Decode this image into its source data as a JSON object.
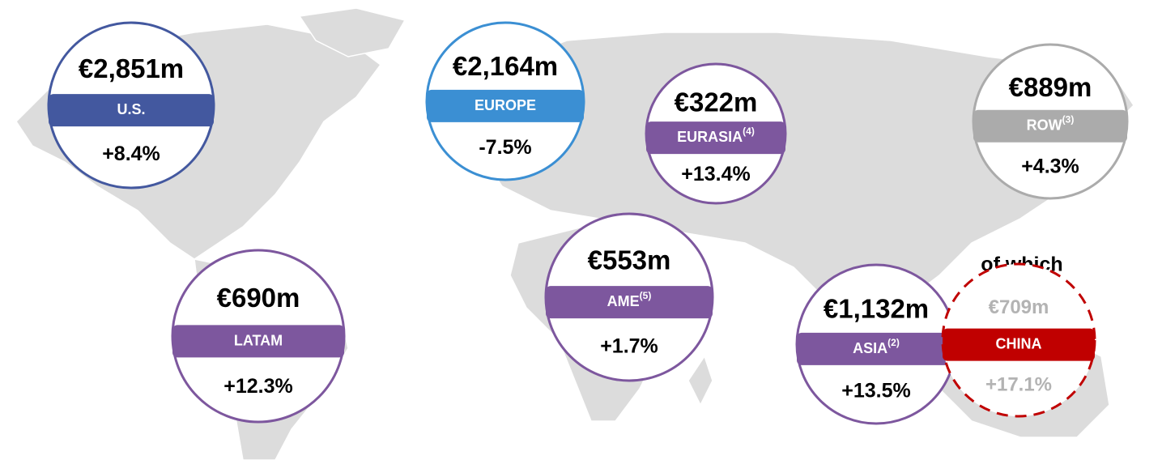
{
  "regions": [
    {
      "value": "€2,851m",
      "name": "U.S.",
      "change": "+8.4%",
      "color": "#43589f"
    },
    {
      "value": "€2,164m",
      "name": "EUROPE",
      "change": "-7.5%",
      "color": "#3b8fd3"
    },
    {
      "value": "€322m",
      "name": "EURASIA",
      "sup": "(4)",
      "change": "+13.4%",
      "color": "#7d579e"
    },
    {
      "value": "€889m",
      "name": "ROW",
      "sup": "(3)",
      "change": "+4.3%",
      "color": "#ababab"
    },
    {
      "value": "€690m",
      "name": "LATAM",
      "change": "+12.3%",
      "color": "#7d579e"
    },
    {
      "value": "€553m",
      "name": "AME",
      "sup": "(5)",
      "change": "+1.7%",
      "color": "#7d579e"
    },
    {
      "value": "€1,132m",
      "name": "ASIA",
      "sup": "(2)",
      "change": "+13.5%",
      "color": "#7d579e"
    }
  ],
  "sub_label": "of which",
  "china": {
    "value": "€709m",
    "name": "CHINA",
    "change": "+17.1%",
    "color": "#c00000"
  }
}
